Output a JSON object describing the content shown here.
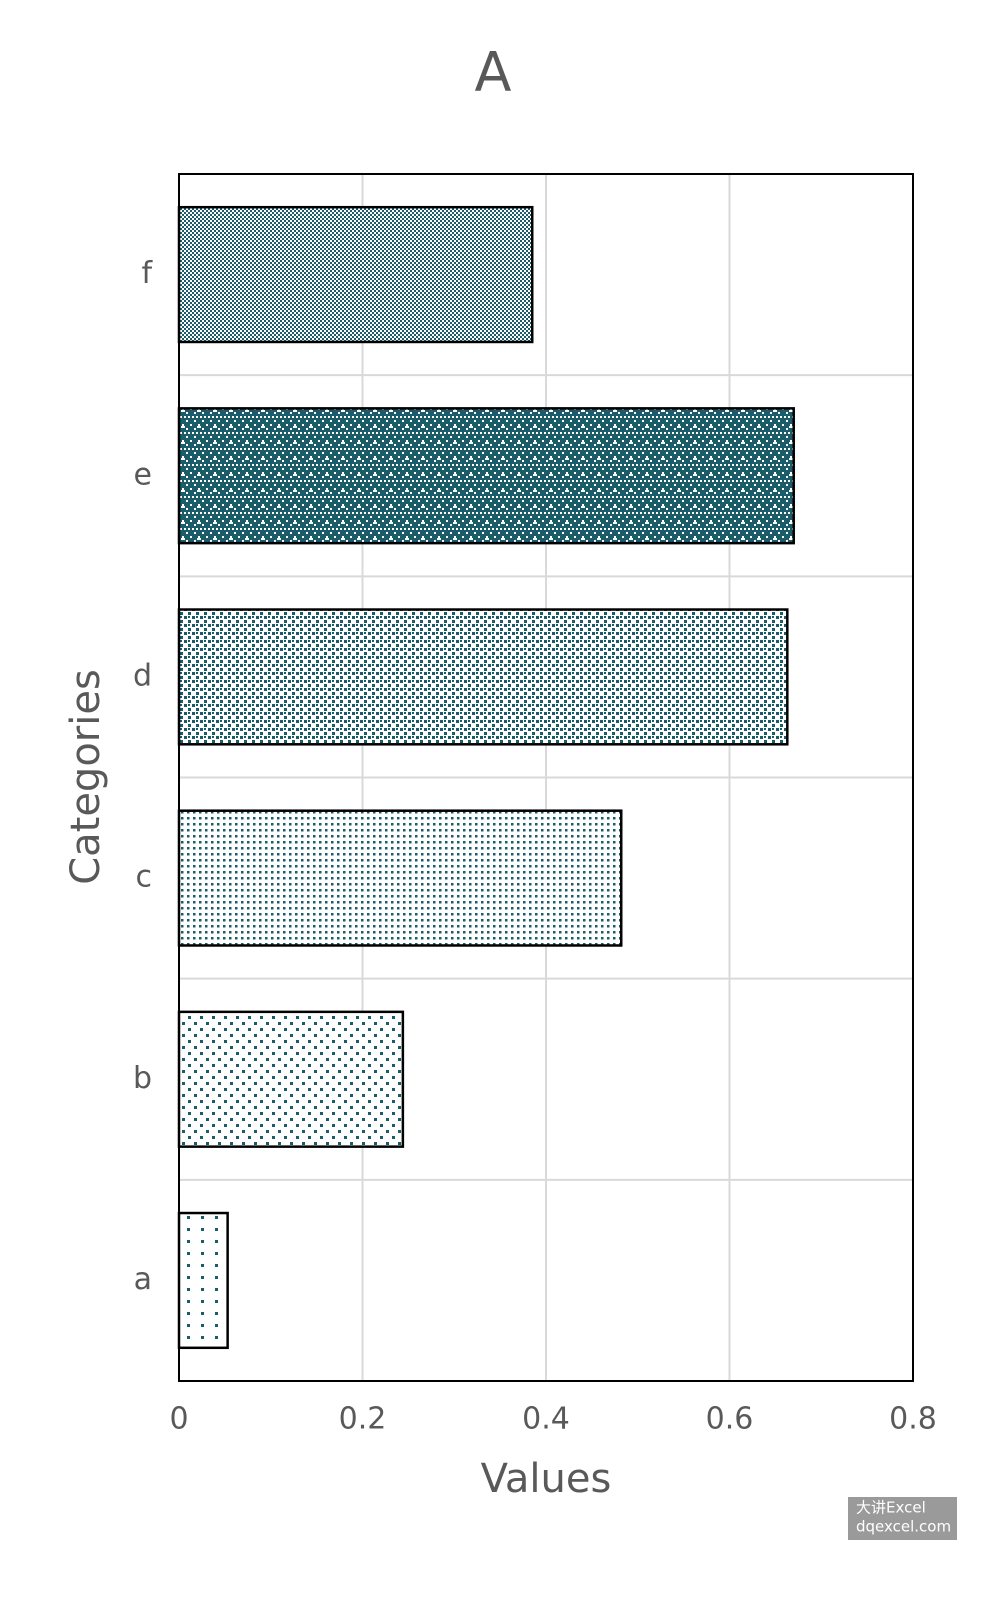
{
  "chart_data": {
    "type": "barh",
    "title": "A",
    "x_label": "Values",
    "y_label": "Categories",
    "categories": [
      "a",
      "b",
      "c",
      "d",
      "e",
      "f"
    ],
    "values": [
      0.053,
      0.244,
      0.482,
      0.663,
      0.67,
      0.385
    ],
    "color": "#1b5c6b",
    "xlim": [
      0,
      0.8
    ],
    "xticks": [
      0,
      0.2,
      0.4,
      0.6,
      0.8
    ],
    "grid": true,
    "watermark": [
      "大讲Excel",
      "dqexcel.com"
    ]
  }
}
